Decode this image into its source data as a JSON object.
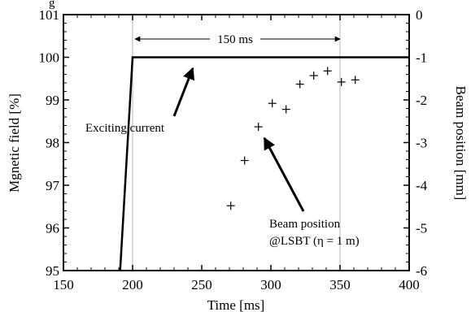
{
  "chart_data": {
    "type": "line",
    "title": "",
    "xlabel": "Time [ms]",
    "ylabel_left": "Mgnetic field [%]",
    "ylabel_right": "Beam position [mm]",
    "xlim": [
      150,
      400
    ],
    "ylim_left": [
      95,
      101
    ],
    "ylim_right": [
      -6,
      0
    ],
    "x_ticks": [
      150,
      200,
      250,
      300,
      350,
      400
    ],
    "y_left_ticks": [
      95,
      96,
      97,
      98,
      99,
      100,
      101
    ],
    "y_right_ticks": [
      0,
      -1,
      -2,
      -3,
      -4,
      -5,
      -6
    ],
    "x_tick_labels": [
      "150",
      "200",
      "250",
      "300",
      "350",
      "400"
    ],
    "y_left_tick_labels": [
      "95",
      "96",
      "97",
      "98",
      "99",
      "100",
      "101"
    ],
    "y_right_tick_labels": [
      "0",
      "-1",
      "-2",
      "-3",
      "-4",
      "-5",
      "-6"
    ],
    "grid": false,
    "reference_lines_x": [
      200,
      350
    ],
    "series": [
      {
        "axis": "left",
        "style": "line",
        "x": [
          191,
          200,
          400
        ],
        "y": [
          95,
          100,
          100
        ]
      },
      {
        "axis": "right",
        "style": "plus-markers",
        "x": [
          271,
          281,
          291,
          301,
          311,
          321,
          331,
          341,
          351,
          361
        ],
        "y": [
          -4.48,
          -3.42,
          -2.63,
          -2.08,
          -2.22,
          -1.63,
          -1.43,
          -1.32,
          -1.58,
          -1.53
        ]
      }
    ],
    "annotations": {
      "span_label": "150 ms",
      "exciting_label": "Exciting current",
      "beam_label_1": "Beam position",
      "beam_label_2": "@LSBT (η = 1 m)"
    },
    "partial_top_text": "g"
  }
}
